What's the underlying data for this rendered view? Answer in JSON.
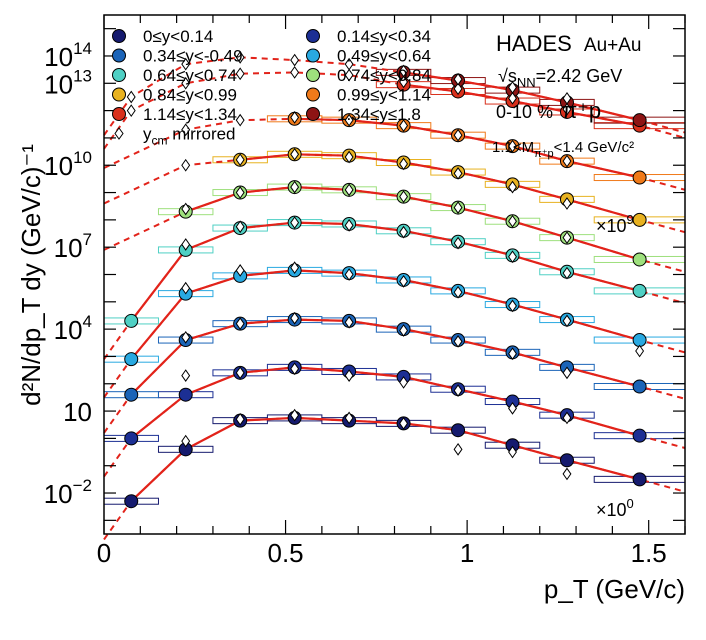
{
  "chart_data": {
    "type": "scatter",
    "xlabel": "p_T (GeV/c)",
    "ylabel": "d²N/dp_T dy (GeV/c)⁻¹",
    "xlim": [
      0,
      1.6
    ],
    "ylim_log10": [
      -3.5,
      15.5
    ],
    "log_y": true,
    "x_tick_labels": [
      {
        "value": 0,
        "label": "0"
      },
      {
        "value": 0.5,
        "label": "0.5"
      },
      {
        "value": 1,
        "label": "1"
      },
      {
        "value": 1.5,
        "label": "1.5"
      }
    ],
    "y_tick_labels": [
      {
        "exp": -2,
        "base": "10",
        "sup": "−2"
      },
      {
        "exp": 1,
        "base": "10",
        "sup": ""
      },
      {
        "exp": 4,
        "base": "10",
        "sup": "4"
      },
      {
        "exp": 7,
        "base": "10",
        "sup": "7"
      },
      {
        "exp": 10,
        "base": "10",
        "sup": "10"
      },
      {
        "exp": 13,
        "base": "10",
        "sup": "13"
      },
      {
        "exp": 14,
        "base": "10",
        "sup": "14"
      }
    ],
    "x_points": [
      0.075,
      0.225,
      0.375,
      0.525,
      0.675,
      0.825,
      0.975,
      1.125,
      1.275,
      1.475
    ],
    "series": [
      {
        "name": "0≤y<0.14",
        "color": "#151a6e",
        "values": [
          -2.3,
          -0.4,
          0.65,
          0.75,
          0.65,
          0.55,
          0.3,
          -0.25,
          -0.8,
          -1.5
        ],
        "mirror": [
          null,
          -0.1,
          0.7,
          0.85,
          0.75,
          0.55,
          -0.4,
          -0.5,
          -1.3,
          null
        ]
      },
      {
        "name": "0.14≤y<0.34",
        "color": "#1c2f94",
        "values": [
          0,
          1.6,
          2.4,
          2.6,
          2.45,
          2.25,
          1.8,
          1.35,
          0.85,
          0.1
        ],
        "mirror": [
          null,
          2.3,
          2.4,
          2.55,
          2.3,
          2.05,
          1.75,
          1.1,
          0.75,
          null
        ]
      },
      {
        "name": "0.34≤y<-0.49",
        "color": "#1b64b8",
        "values": [
          1.6,
          3.6,
          4.2,
          4.35,
          4.3,
          4.0,
          3.6,
          3.15,
          2.6,
          1.9
        ],
        "mirror": [
          null,
          3.7,
          4.2,
          4.4,
          4.25,
          3.95,
          3.55,
          3.1,
          2.4,
          null
        ]
      },
      {
        "name": "0.49≤y<0.64",
        "color": "#29a9e1",
        "values": [
          2.9,
          5.3,
          5.95,
          6.15,
          6.05,
          5.8,
          5.4,
          4.9,
          4.35,
          3.6
        ],
        "mirror": [
          null,
          5.5,
          6.15,
          6.25,
          6.0,
          5.75,
          5.35,
          4.85,
          4.3,
          3.2
        ]
      },
      {
        "name": "0.64≤y<0.74",
        "color": "#4fd0c4",
        "values": [
          4.3,
          6.9,
          7.7,
          7.9,
          7.85,
          7.6,
          7.2,
          6.7,
          6.1,
          5.4
        ],
        "mirror": [
          null,
          7.1,
          7.75,
          7.9,
          7.8,
          7.55,
          7.15,
          6.65,
          6.05,
          null
        ]
      },
      {
        "name": "0.74≤y<0.84",
        "color": "#9ee07d",
        "values": [
          null,
          8.3,
          9.0,
          9.2,
          9.1,
          8.85,
          8.45,
          7.95,
          7.35,
          6.55
        ],
        "mirror": [
          null,
          8.4,
          9.0,
          9.2,
          9.1,
          8.85,
          8.45,
          7.95,
          7.35,
          null
        ]
      },
      {
        "name": "0.84≤y<0.99",
        "color": "#e8b220",
        "values": [
          null,
          null,
          10.2,
          10.4,
          10.35,
          10.1,
          9.75,
          9.3,
          8.75,
          8.0
        ],
        "mirror": [
          null,
          10.0,
          10.2,
          10.4,
          10.3,
          10.05,
          9.7,
          9.2,
          8.6,
          null
        ]
      },
      {
        "name": "0.99≤y<1.14",
        "color": "#f07a1a",
        "values": [
          null,
          null,
          null,
          11.7,
          11.65,
          11.45,
          11.1,
          10.7,
          10.15,
          9.55
        ],
        "mirror": [
          null,
          11.3,
          11.65,
          11.75,
          11.65,
          11.45,
          11.1,
          10.7,
          10.15,
          null
        ]
      },
      {
        "name": "1.14≤y<1.34",
        "color": "#d9301c",
        "values": [
          null,
          null,
          null,
          null,
          null,
          12.95,
          12.7,
          12.35,
          11.95,
          11.45
        ],
        "mirror": [
          12.0,
          13.0,
          13.35,
          13.4,
          13.3,
          13.05,
          12.8,
          12.45,
          12.05,
          null
        ]
      },
      {
        "name": "1.34≤y≤1.8",
        "color": "#8e1414",
        "values": [
          null,
          null,
          null,
          null,
          null,
          13.4,
          13.1,
          12.75,
          12.3,
          11.65
        ],
        "mirror": [
          12.5,
          13.7,
          13.95,
          13.85,
          13.7,
          13.45,
          13.15,
          12.85,
          12.45,
          null
        ]
      }
    ],
    "mirror_label": "y",
    "mirror_label_sub": "cm",
    "mirror_label_rest": " mirrored",
    "scale_top": "×10",
    "scale_top_sup": "9",
    "scale_bottom": "×10",
    "scale_bottom_sup": "0",
    "legend_placement": "top-left",
    "grid": false
  },
  "info": {
    "experiment": "HADES",
    "system": "Au+Au",
    "energy_prefix": "s",
    "energy_sub": "NN",
    "energy_value": "=2.42 GeV",
    "centrality": "0-10 %",
    "particle": "π⁺p",
    "mass_cut_prefix": "1.1<M",
    "mass_cut_sub": "π⁺p",
    "mass_cut_suffix": "<1.4 GeV/c²"
  }
}
